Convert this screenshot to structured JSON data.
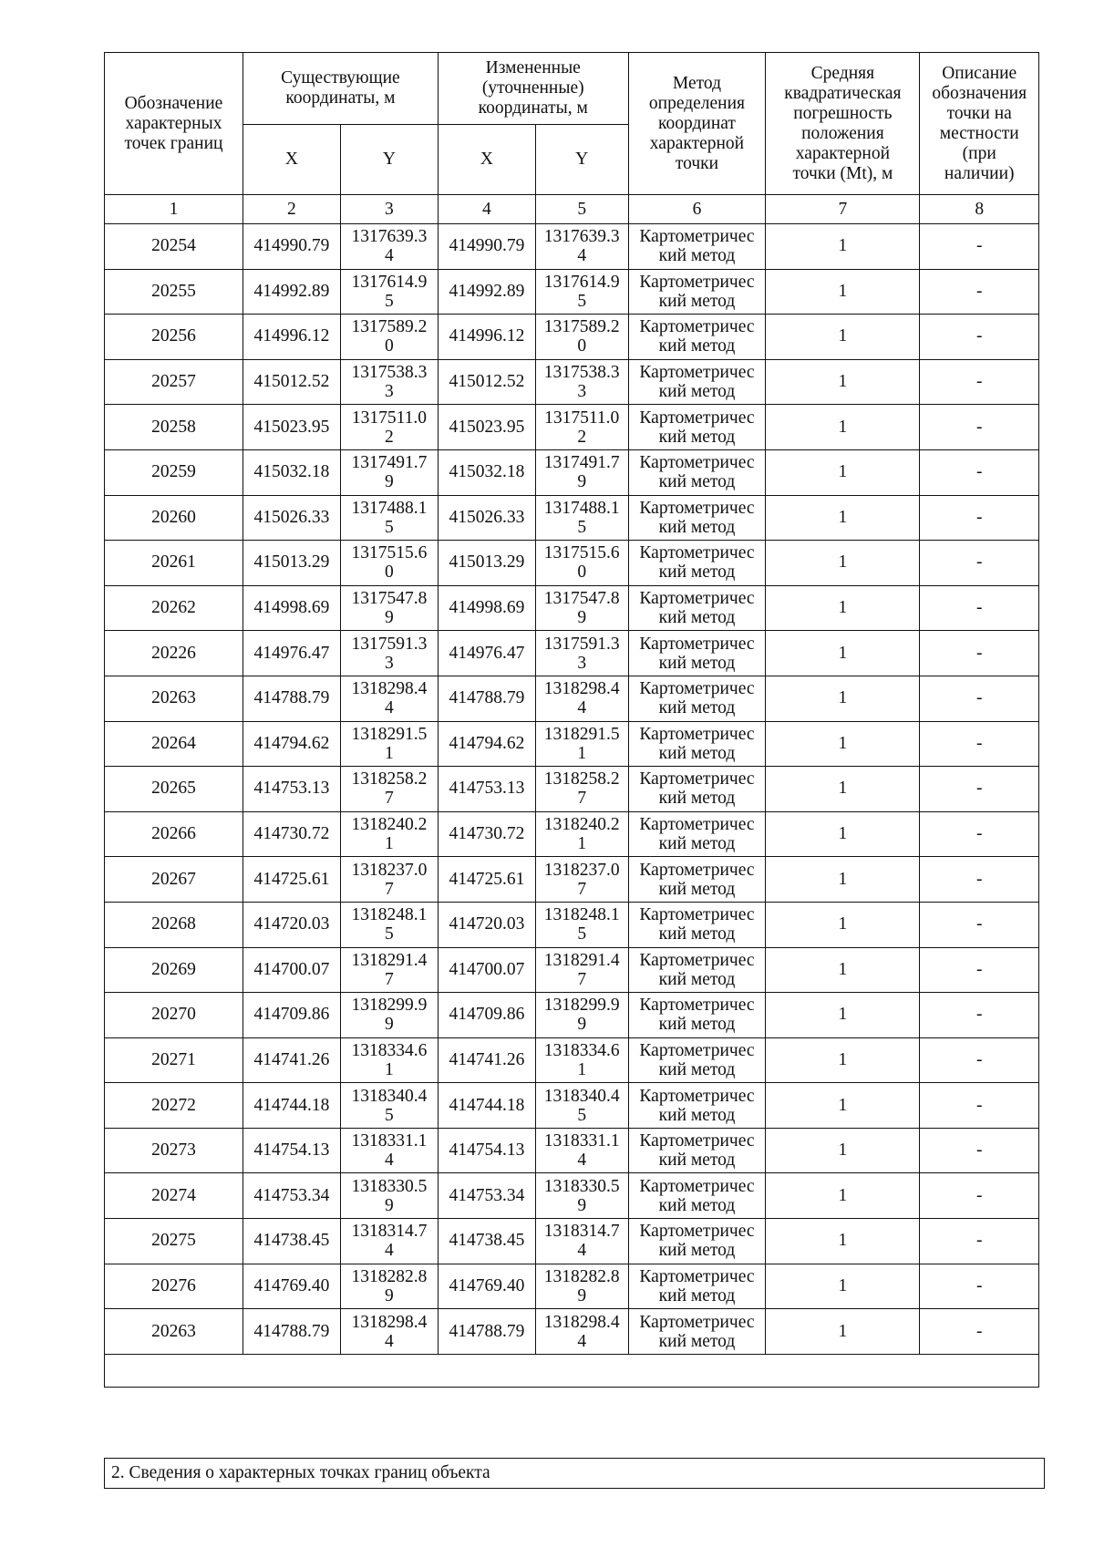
{
  "header": {
    "col1": "Обозначение\nхарактерных\nточек границ",
    "existing": "Существующие\nкоординаты, м",
    "changed": "Измененные\n(уточненные)\nкоординаты, м",
    "method": "Метод\nопределения\nкоординат\nхарактерной\nточки",
    "error": "Средняя\nквадратическая\nпогрешность\nположения\nхарактерной\nточки (Mt), м",
    "description": "Описание\nобозначения\nточки на\nместности\n(при\nналичии)",
    "x": "X",
    "y": "Y"
  },
  "column_numbers": [
    "1",
    "2",
    "3",
    "4",
    "5",
    "6",
    "7",
    "8"
  ],
  "rows": [
    [
      "20254",
      "414990.79",
      "1317639.3\n4",
      "414990.79",
      "1317639.3\n4",
      "Картометричес\nкий метод",
      "1",
      "-"
    ],
    [
      "20255",
      "414992.89",
      "1317614.9\n5",
      "414992.89",
      "1317614.9\n5",
      "Картометричес\nкий метод",
      "1",
      "-"
    ],
    [
      "20256",
      "414996.12",
      "1317589.2\n0",
      "414996.12",
      "1317589.2\n0",
      "Картометричес\nкий метод",
      "1",
      "-"
    ],
    [
      "20257",
      "415012.52",
      "1317538.3\n3",
      "415012.52",
      "1317538.3\n3",
      "Картометричес\nкий метод",
      "1",
      "-"
    ],
    [
      "20258",
      "415023.95",
      "1317511.0\n2",
      "415023.95",
      "1317511.0\n2",
      "Картометричес\nкий метод",
      "1",
      "-"
    ],
    [
      "20259",
      "415032.18",
      "1317491.7\n9",
      "415032.18",
      "1317491.7\n9",
      "Картометричес\nкий метод",
      "1",
      "-"
    ],
    [
      "20260",
      "415026.33",
      "1317488.1\n5",
      "415026.33",
      "1317488.1\n5",
      "Картометричес\nкий метод",
      "1",
      "-"
    ],
    [
      "20261",
      "415013.29",
      "1317515.6\n0",
      "415013.29",
      "1317515.6\n0",
      "Картометричес\nкий метод",
      "1",
      "-"
    ],
    [
      "20262",
      "414998.69",
      "1317547.8\n9",
      "414998.69",
      "1317547.8\n9",
      "Картометричес\nкий метод",
      "1",
      "-"
    ],
    [
      "20226",
      "414976.47",
      "1317591.3\n3",
      "414976.47",
      "1317591.3\n3",
      "Картометричес\nкий метод",
      "1",
      "-"
    ],
    [
      "20263",
      "414788.79",
      "1318298.4\n4",
      "414788.79",
      "1318298.4\n4",
      "Картометричес\nкий метод",
      "1",
      "-"
    ],
    [
      "20264",
      "414794.62",
      "1318291.5\n1",
      "414794.62",
      "1318291.5\n1",
      "Картометричес\nкий метод",
      "1",
      "-"
    ],
    [
      "20265",
      "414753.13",
      "1318258.2\n7",
      "414753.13",
      "1318258.2\n7",
      "Картометричес\nкий метод",
      "1",
      "-"
    ],
    [
      "20266",
      "414730.72",
      "1318240.2\n1",
      "414730.72",
      "1318240.2\n1",
      "Картометричес\nкий метод",
      "1",
      "-"
    ],
    [
      "20267",
      "414725.61",
      "1318237.0\n7",
      "414725.61",
      "1318237.0\n7",
      "Картометричес\nкий метод",
      "1",
      "-"
    ],
    [
      "20268",
      "414720.03",
      "1318248.1\n5",
      "414720.03",
      "1318248.1\n5",
      "Картометричес\nкий метод",
      "1",
      "-"
    ],
    [
      "20269",
      "414700.07",
      "1318291.4\n7",
      "414700.07",
      "1318291.4\n7",
      "Картометричес\nкий метод",
      "1",
      "-"
    ],
    [
      "20270",
      "414709.86",
      "1318299.9\n9",
      "414709.86",
      "1318299.9\n9",
      "Картометричес\nкий метод",
      "1",
      "-"
    ],
    [
      "20271",
      "414741.26",
      "1318334.6\n1",
      "414741.26",
      "1318334.6\n1",
      "Картометричес\nкий метод",
      "1",
      "-"
    ],
    [
      "20272",
      "414744.18",
      "1318340.4\n5",
      "414744.18",
      "1318340.4\n5",
      "Картометричес\nкий метод",
      "1",
      "-"
    ],
    [
      "20273",
      "414754.13",
      "1318331.1\n4",
      "414754.13",
      "1318331.1\n4",
      "Картометричес\nкий метод",
      "1",
      "-"
    ],
    [
      "20274",
      "414753.34",
      "1318330.5\n9",
      "414753.34",
      "1318330.5\n9",
      "Картометричес\nкий метод",
      "1",
      "-"
    ],
    [
      "20275",
      "414738.45",
      "1318314.7\n4",
      "414738.45",
      "1318314.7\n4",
      "Картометричес\nкий метод",
      "1",
      "-"
    ],
    [
      "20276",
      "414769.40",
      "1318282.8\n9",
      "414769.40",
      "1318282.8\n9",
      "Картометричес\nкий метод",
      "1",
      "-"
    ],
    [
      "20263",
      "414788.79",
      "1318298.4\n4",
      "414788.79",
      "1318298.4\n4",
      "Картометричес\nкий метод",
      "1",
      "-"
    ]
  ],
  "section_title": "2. Сведения о характерных точках границ объекта"
}
